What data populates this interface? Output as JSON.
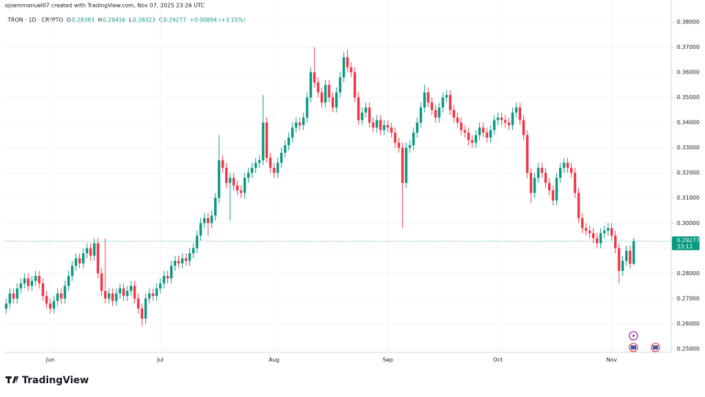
{
  "chart_data": {
    "type": "candlestick",
    "credit": "ojoemmanuel07 created with TradingView.com, Nov 07, 2025 23:26 UTC",
    "symbol": "TRON · 1D · CRYPTO",
    "ohlc_legend": [
      {
        "label": "O",
        "value": "0.28383"
      },
      {
        "label": "H",
        "value": "0.29416"
      },
      {
        "label": "L",
        "value": "0.28323"
      },
      {
        "label": "C",
        "value": "0.29277"
      }
    ],
    "change": "+0.00894 (+3.15%)",
    "last_price": 0.29277,
    "countdown": "33:12",
    "brand": "TradingView",
    "up_color": "#089981",
    "down_color": "#f23645",
    "ylim": [
      0.2486,
      0.3833
    ],
    "yticks": [
      {
        "value": 0.25,
        "label": "0.25000"
      },
      {
        "value": 0.26,
        "label": "0.26000"
      },
      {
        "value": 0.27,
        "label": "0.27000"
      },
      {
        "value": 0.28,
        "label": "0.28000"
      },
      {
        "value": 0.29,
        "label": "0.29000"
      },
      {
        "value": 0.3,
        "label": "0.30000"
      },
      {
        "value": 0.31,
        "label": "0.31000"
      },
      {
        "value": 0.32,
        "label": "0.32000"
      },
      {
        "value": 0.33,
        "label": "0.33000"
      },
      {
        "value": 0.34,
        "label": "0.34000"
      },
      {
        "value": 0.35,
        "label": "0.35000"
      },
      {
        "value": 0.36,
        "label": "0.36000"
      },
      {
        "value": 0.37,
        "label": "0.37000"
      },
      {
        "value": 0.38,
        "label": "0.38000"
      }
    ],
    "grid": true,
    "categories": [
      null,
      null,
      null,
      null,
      null,
      null,
      null,
      null,
      null,
      null,
      null,
      null,
      "Jun",
      null,
      null,
      null,
      null,
      null,
      null,
      null,
      null,
      null,
      null,
      null,
      null,
      null,
      null,
      null,
      null,
      null,
      null,
      null,
      null,
      null,
      null,
      null,
      null,
      null,
      null,
      null,
      null,
      null,
      "Jul",
      null,
      null,
      null,
      null,
      null,
      null,
      null,
      null,
      null,
      null,
      null,
      null,
      null,
      null,
      null,
      null,
      null,
      null,
      null,
      null,
      null,
      null,
      null,
      null,
      null,
      null,
      null,
      null,
      null,
      null,
      "Aug",
      null,
      null,
      null,
      null,
      null,
      null,
      null,
      null,
      null,
      null,
      null,
      null,
      null,
      null,
      null,
      null,
      null,
      null,
      null,
      null,
      null,
      null,
      null,
      null,
      null,
      null,
      null,
      null,
      null,
      null,
      "Sep",
      null,
      null,
      null,
      null,
      null,
      null,
      null,
      null,
      null,
      null,
      null,
      null,
      null,
      null,
      null,
      null,
      null,
      null,
      null,
      null,
      null,
      null,
      null,
      null,
      null,
      null,
      null,
      null,
      null,
      "Oct",
      null,
      null,
      null,
      null,
      null,
      null,
      null,
      null,
      null,
      null,
      null,
      null,
      null,
      null,
      null,
      null,
      null,
      null,
      null,
      null,
      null,
      null,
      null,
      null,
      null,
      null,
      null,
      null,
      null,
      null,
      "Nov",
      null,
      null,
      null,
      null,
      null,
      null
    ],
    "open": [
      0.266,
      0.268,
      0.272,
      0.27,
      0.274,
      0.276,
      0.278,
      0.275,
      0.277,
      0.279,
      0.276,
      0.271,
      0.268,
      0.266,
      0.269,
      0.272,
      0.27,
      0.275,
      0.279,
      0.283,
      0.286,
      0.284,
      0.288,
      0.29,
      0.287,
      0.292,
      0.28,
      0.273,
      0.27,
      0.272,
      0.269,
      0.272,
      0.274,
      0.271,
      0.273,
      0.275,
      0.27,
      0.266,
      0.262,
      0.27,
      0.272,
      0.271,
      0.274,
      0.276,
      0.279,
      0.278,
      0.283,
      0.285,
      0.284,
      0.286,
      0.285,
      0.288,
      0.29,
      0.295,
      0.3,
      0.302,
      0.3,
      0.303,
      0.31,
      0.325,
      0.322,
      0.316,
      0.318,
      0.315,
      0.313,
      0.312,
      0.318,
      0.32,
      0.322,
      0.324,
      0.325,
      0.34,
      0.326,
      0.322,
      0.32,
      0.324,
      0.328,
      0.331,
      0.334,
      0.338,
      0.34,
      0.339,
      0.342,
      0.35,
      0.36,
      0.356,
      0.352,
      0.348,
      0.355,
      0.35,
      0.346,
      0.352,
      0.358,
      0.366,
      0.362,
      0.36,
      0.35,
      0.341,
      0.344,
      0.346,
      0.34,
      0.338,
      0.341,
      0.337,
      0.339,
      0.338,
      0.336,
      0.332,
      0.33,
      0.316,
      0.33,
      0.331,
      0.336,
      0.34,
      0.346,
      0.352,
      0.348,
      0.345,
      0.342,
      0.346,
      0.35,
      0.351,
      0.345,
      0.342,
      0.34,
      0.337,
      0.336,
      0.333,
      0.332,
      0.335,
      0.338,
      0.336,
      0.334,
      0.337,
      0.341,
      0.342,
      0.341,
      0.34,
      0.339,
      0.344,
      0.346,
      0.341,
      0.335,
      0.32,
      0.312,
      0.318,
      0.322,
      0.32,
      0.316,
      0.313,
      0.309,
      0.318,
      0.322,
      0.324,
      0.322,
      0.32,
      0.312,
      0.302,
      0.298,
      0.297,
      0.296,
      0.294,
      0.292,
      0.296,
      0.297,
      0.298,
      0.295,
      0.29,
      0.281,
      0.285,
      0.289,
      0.28383
    ],
    "high": [
      0.27,
      0.274,
      0.274,
      0.276,
      0.278,
      0.28,
      0.28,
      0.279,
      0.281,
      0.281,
      0.278,
      0.273,
      0.27,
      0.271,
      0.274,
      0.274,
      0.277,
      0.281,
      0.285,
      0.288,
      0.288,
      0.29,
      0.292,
      0.292,
      0.294,
      0.294,
      0.282,
      0.294,
      0.274,
      0.274,
      0.274,
      0.276,
      0.276,
      0.275,
      0.277,
      0.277,
      0.272,
      0.268,
      0.272,
      0.274,
      0.274,
      0.276,
      0.278,
      0.281,
      0.281,
      0.285,
      0.287,
      0.287,
      0.288,
      0.288,
      0.29,
      0.292,
      0.297,
      0.302,
      0.304,
      0.304,
      0.305,
      0.312,
      0.335,
      0.327,
      0.324,
      0.32,
      0.32,
      0.317,
      0.315,
      0.32,
      0.322,
      0.324,
      0.326,
      0.327,
      0.351,
      0.342,
      0.328,
      0.324,
      0.326,
      0.33,
      0.333,
      0.336,
      0.34,
      0.342,
      0.342,
      0.344,
      0.352,
      0.362,
      0.37,
      0.358,
      0.354,
      0.357,
      0.357,
      0.352,
      0.354,
      0.36,
      0.368,
      0.369,
      0.364,
      0.362,
      0.352,
      0.346,
      0.348,
      0.348,
      0.342,
      0.343,
      0.343,
      0.341,
      0.341,
      0.34,
      0.338,
      0.334,
      0.332,
      0.332,
      0.333,
      0.338,
      0.342,
      0.348,
      0.355,
      0.354,
      0.35,
      0.347,
      0.348,
      0.352,
      0.353,
      0.353,
      0.347,
      0.344,
      0.342,
      0.339,
      0.338,
      0.335,
      0.337,
      0.34,
      0.34,
      0.338,
      0.339,
      0.343,
      0.344,
      0.344,
      0.343,
      0.342,
      0.346,
      0.348,
      0.348,
      0.343,
      0.337,
      0.322,
      0.32,
      0.324,
      0.324,
      0.322,
      0.318,
      0.315,
      0.32,
      0.324,
      0.326,
      0.326,
      0.324,
      0.322,
      0.314,
      0.304,
      0.3,
      0.299,
      0.298,
      0.296,
      0.298,
      0.299,
      0.3,
      0.3,
      0.297,
      0.292,
      0.287,
      0.291,
      0.291,
      0.29416
    ],
    "low": [
      0.264,
      0.266,
      0.268,
      0.268,
      0.272,
      0.274,
      0.273,
      0.273,
      0.275,
      0.274,
      0.269,
      0.266,
      0.264,
      0.264,
      0.267,
      0.268,
      0.268,
      0.273,
      0.277,
      0.281,
      0.282,
      0.282,
      0.286,
      0.285,
      0.285,
      0.278,
      0.271,
      0.268,
      0.268,
      0.267,
      0.267,
      0.27,
      0.269,
      0.269,
      0.271,
      0.268,
      0.264,
      0.259,
      0.26,
      0.268,
      0.269,
      0.269,
      0.272,
      0.274,
      0.276,
      0.276,
      0.281,
      0.282,
      0.282,
      0.283,
      0.283,
      0.286,
      0.288,
      0.293,
      0.298,
      0.295,
      0.298,
      0.301,
      0.308,
      0.32,
      0.314,
      0.301,
      0.313,
      0.311,
      0.31,
      0.31,
      0.316,
      0.318,
      0.32,
      0.322,
      0.323,
      0.324,
      0.32,
      0.318,
      0.318,
      0.322,
      0.326,
      0.329,
      0.332,
      0.336,
      0.337,
      0.337,
      0.34,
      0.348,
      0.354,
      0.35,
      0.346,
      0.346,
      0.348,
      0.344,
      0.344,
      0.35,
      0.356,
      0.36,
      0.358,
      0.348,
      0.339,
      0.339,
      0.342,
      0.338,
      0.336,
      0.336,
      0.335,
      0.335,
      0.336,
      0.334,
      0.33,
      0.328,
      0.298,
      0.314,
      0.328,
      0.329,
      0.334,
      0.338,
      0.344,
      0.346,
      0.343,
      0.34,
      0.34,
      0.344,
      0.348,
      0.343,
      0.34,
      0.338,
      0.335,
      0.334,
      0.331,
      0.33,
      0.33,
      0.333,
      0.334,
      0.332,
      0.332,
      0.335,
      0.339,
      0.339,
      0.338,
      0.337,
      0.337,
      0.342,
      0.339,
      0.333,
      0.318,
      0.308,
      0.31,
      0.316,
      0.318,
      0.314,
      0.311,
      0.307,
      0.307,
      0.316,
      0.32,
      0.32,
      0.318,
      0.31,
      0.3,
      0.296,
      0.295,
      0.294,
      0.292,
      0.29,
      0.29,
      0.294,
      0.295,
      0.293,
      0.288,
      0.276,
      0.279,
      0.283,
      0.282,
      0.28323
    ],
    "close": [
      0.268,
      0.272,
      0.27,
      0.274,
      0.276,
      0.278,
      0.275,
      0.277,
      0.279,
      0.276,
      0.271,
      0.268,
      0.266,
      0.269,
      0.272,
      0.27,
      0.275,
      0.279,
      0.283,
      0.286,
      0.284,
      0.288,
      0.29,
      0.287,
      0.292,
      0.28,
      0.273,
      0.27,
      0.272,
      0.269,
      0.272,
      0.274,
      0.271,
      0.273,
      0.275,
      0.27,
      0.266,
      0.262,
      0.27,
      0.272,
      0.271,
      0.274,
      0.276,
      0.279,
      0.278,
      0.283,
      0.285,
      0.284,
      0.286,
      0.285,
      0.288,
      0.29,
      0.295,
      0.3,
      0.302,
      0.3,
      0.303,
      0.31,
      0.325,
      0.322,
      0.316,
      0.318,
      0.315,
      0.313,
      0.312,
      0.318,
      0.32,
      0.322,
      0.324,
      0.325,
      0.34,
      0.326,
      0.322,
      0.32,
      0.324,
      0.328,
      0.331,
      0.334,
      0.338,
      0.34,
      0.339,
      0.342,
      0.35,
      0.36,
      0.356,
      0.352,
      0.348,
      0.355,
      0.35,
      0.346,
      0.352,
      0.358,
      0.366,
      0.362,
      0.36,
      0.35,
      0.341,
      0.344,
      0.346,
      0.34,
      0.338,
      0.341,
      0.337,
      0.339,
      0.338,
      0.336,
      0.332,
      0.33,
      0.316,
      0.33,
      0.331,
      0.336,
      0.34,
      0.346,
      0.352,
      0.348,
      0.345,
      0.342,
      0.346,
      0.35,
      0.351,
      0.345,
      0.342,
      0.34,
      0.337,
      0.336,
      0.333,
      0.332,
      0.335,
      0.338,
      0.336,
      0.334,
      0.337,
      0.341,
      0.342,
      0.341,
      0.34,
      0.339,
      0.344,
      0.346,
      0.341,
      0.335,
      0.32,
      0.312,
      0.318,
      0.322,
      0.32,
      0.316,
      0.313,
      0.309,
      0.318,
      0.322,
      0.324,
      0.322,
      0.32,
      0.312,
      0.302,
      0.298,
      0.297,
      0.296,
      0.294,
      0.292,
      0.296,
      0.297,
      0.298,
      0.295,
      0.29,
      0.281,
      0.285,
      0.289,
      0.28383,
      0.29277
    ]
  }
}
